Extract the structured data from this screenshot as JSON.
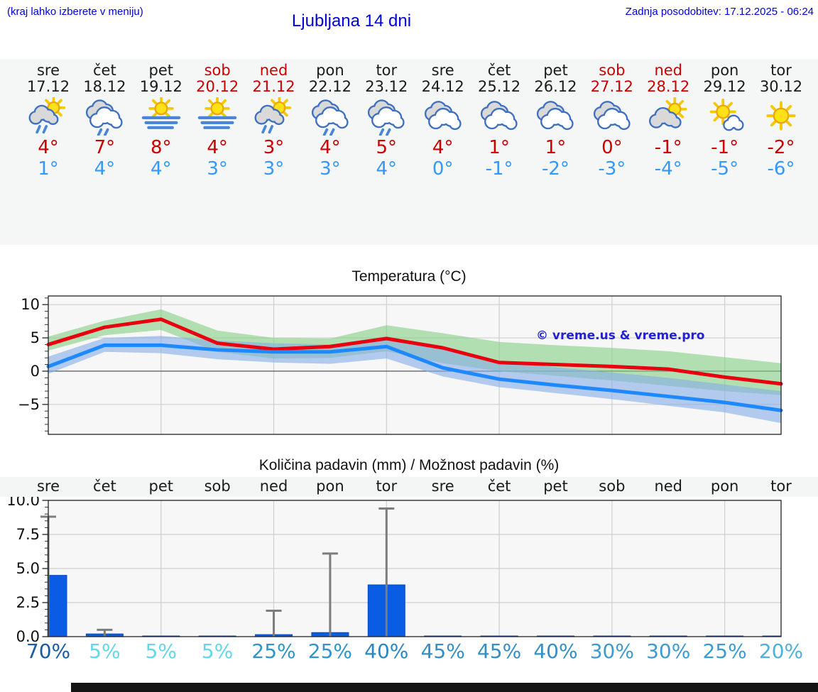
{
  "header": {
    "hint": "(kraj lahko izberete v meniju)",
    "title": "Ljubljana 14 dni",
    "updated": "Zadnja posodobitev: 17.12.2025 - 06:24"
  },
  "forecast": {
    "days": [
      {
        "name": "sre",
        "date": "17.12",
        "weekend": false,
        "icon": "sun-cloud-rain",
        "high": "4°",
        "low": "1°"
      },
      {
        "name": "čet",
        "date": "18.12",
        "weekend": false,
        "icon": "cloud-rain",
        "high": "7°",
        "low": "4°"
      },
      {
        "name": "pet",
        "date": "19.12",
        "weekend": false,
        "icon": "sun-fog",
        "high": "8°",
        "low": "4°"
      },
      {
        "name": "sob",
        "date": "20.12",
        "weekend": true,
        "icon": "sun-fog",
        "high": "4°",
        "low": "3°"
      },
      {
        "name": "ned",
        "date": "21.12",
        "weekend": true,
        "icon": "sun-cloud-rain",
        "high": "3°",
        "low": "3°"
      },
      {
        "name": "pon",
        "date": "22.12",
        "weekend": false,
        "icon": "cloud-rain",
        "high": "4°",
        "low": "3°"
      },
      {
        "name": "tor",
        "date": "23.12",
        "weekend": false,
        "icon": "cloud-rain",
        "high": "5°",
        "low": "4°"
      },
      {
        "name": "sre",
        "date": "24.12",
        "weekend": false,
        "icon": "cloud",
        "high": "4°",
        "low": "0°"
      },
      {
        "name": "čet",
        "date": "25.12",
        "weekend": false,
        "icon": "cloud",
        "high": "1°",
        "low": "-1°"
      },
      {
        "name": "pet",
        "date": "26.12",
        "weekend": false,
        "icon": "cloud",
        "high": "1°",
        "low": "-2°"
      },
      {
        "name": "sob",
        "date": "27.12",
        "weekend": true,
        "icon": "cloud",
        "high": "0°",
        "low": "-3°"
      },
      {
        "name": "ned",
        "date": "28.12",
        "weekend": true,
        "icon": "sun-cloud",
        "high": "-1°",
        "low": "-4°"
      },
      {
        "name": "pon",
        "date": "29.12",
        "weekend": false,
        "icon": "sun-small-cloud",
        "high": "-1°",
        "low": "-5°"
      },
      {
        "name": "tor",
        "date": "30.12",
        "weekend": false,
        "icon": "sun",
        "high": "-2°",
        "low": "-6°"
      }
    ]
  },
  "chart_data": [
    {
      "type": "line",
      "title": "Temperatura (°C)",
      "categories": [
        "sre",
        "čet",
        "pet",
        "sob",
        "ned",
        "pon",
        "tor",
        "sre",
        "čet",
        "pet",
        "sob",
        "ned",
        "pon",
        "tor"
      ],
      "series": [
        {
          "name": "max-temp",
          "color": "#e8000f",
          "values": [
            4,
            6.6,
            7.8,
            4.2,
            3.3,
            3.7,
            4.9,
            3.5,
            1.3,
            1,
            0.7,
            0.3,
            -0.9,
            -1.9
          ]
        },
        {
          "name": "min-temp",
          "color": "#1e88ff",
          "values": [
            0.7,
            3.9,
            3.9,
            3.2,
            2.9,
            2.9,
            3.7,
            0.5,
            -1.2,
            -2.1,
            -2.9,
            -3.8,
            -4.7,
            -5.9
          ]
        }
      ],
      "bands": [
        {
          "name": "max-temp-range",
          "color": "#82ce82",
          "opacity": 0.6,
          "upper": [
            5.2,
            7.6,
            9.3,
            6.1,
            5,
            4.9,
            6.9,
            5.7,
            4.4,
            3.9,
            3.5,
            3,
            2.1,
            1.2
          ],
          "lower": [
            3.1,
            5.4,
            6.2,
            2.9,
            1.9,
            2,
            3,
            1.2,
            0,
            -0.7,
            -1.4,
            -2.2,
            -3,
            -3.6
          ]
        },
        {
          "name": "min-temp-range",
          "color": "#88aee8",
          "opacity": 0.62,
          "upper": [
            2.2,
            5,
            5.3,
            4.6,
            4.2,
            4,
            5.2,
            3.4,
            1.4,
            0.6,
            -0.2,
            -1,
            -2,
            -3
          ],
          "lower": [
            -0.4,
            2.9,
            2.7,
            1.8,
            1.3,
            1.1,
            1.9,
            -0.8,
            -2.4,
            -3.3,
            -4.2,
            -5.2,
            -6.2,
            -7.8
          ]
        }
      ],
      "ylim": [
        -9.5,
        11.3
      ],
      "yticks": [
        10,
        5,
        0,
        -5
      ],
      "grid": true,
      "legend": "none",
      "watermark": "© vreme.us & vreme.pro"
    },
    {
      "type": "bar",
      "title": "Količina padavin (mm) / Možnost padavin (%)",
      "categories": [
        "sre",
        "čet",
        "pet",
        "sob",
        "ned",
        "pon",
        "tor",
        "sre",
        "čet",
        "pet",
        "sob",
        "ned",
        "pon",
        "tor"
      ],
      "values": [
        4.5,
        0.2,
        0.05,
        0.05,
        0.15,
        0.3,
        3.8,
        0.05,
        0.05,
        0.05,
        0.05,
        0.05,
        0.05,
        0.05
      ],
      "whisker_top": [
        8.8,
        0.5,
        0,
        0,
        1.9,
        6.1,
        9.4,
        0,
        0,
        0,
        0,
        0,
        0,
        0
      ],
      "bar_color": "#0b5ce4",
      "whisker_color": "#7d7d7d",
      "ylim": [
        0,
        10
      ],
      "yticks": [
        10,
        7.5,
        5,
        2.5,
        0
      ],
      "grid": true,
      "probabilities": [
        {
          "label": "70%",
          "color": "#1a5ca4"
        },
        {
          "label": "5%",
          "color": "#63d8e8"
        },
        {
          "label": "5%",
          "color": "#63d8e8"
        },
        {
          "label": "5%",
          "color": "#63d8e8"
        },
        {
          "label": "25%",
          "color": "#2f96c9"
        },
        {
          "label": "25%",
          "color": "#2f96c9"
        },
        {
          "label": "40%",
          "color": "#2a87c2"
        },
        {
          "label": "45%",
          "color": "#338fc6"
        },
        {
          "label": "45%",
          "color": "#338fc6"
        },
        {
          "label": "40%",
          "color": "#338fc6"
        },
        {
          "label": "30%",
          "color": "#3c9bd0"
        },
        {
          "label": "30%",
          "color": "#3c9bd0"
        },
        {
          "label": "25%",
          "color": "#3c9bd0"
        },
        {
          "label": "20%",
          "color": "#4fb0da"
        }
      ]
    }
  ]
}
